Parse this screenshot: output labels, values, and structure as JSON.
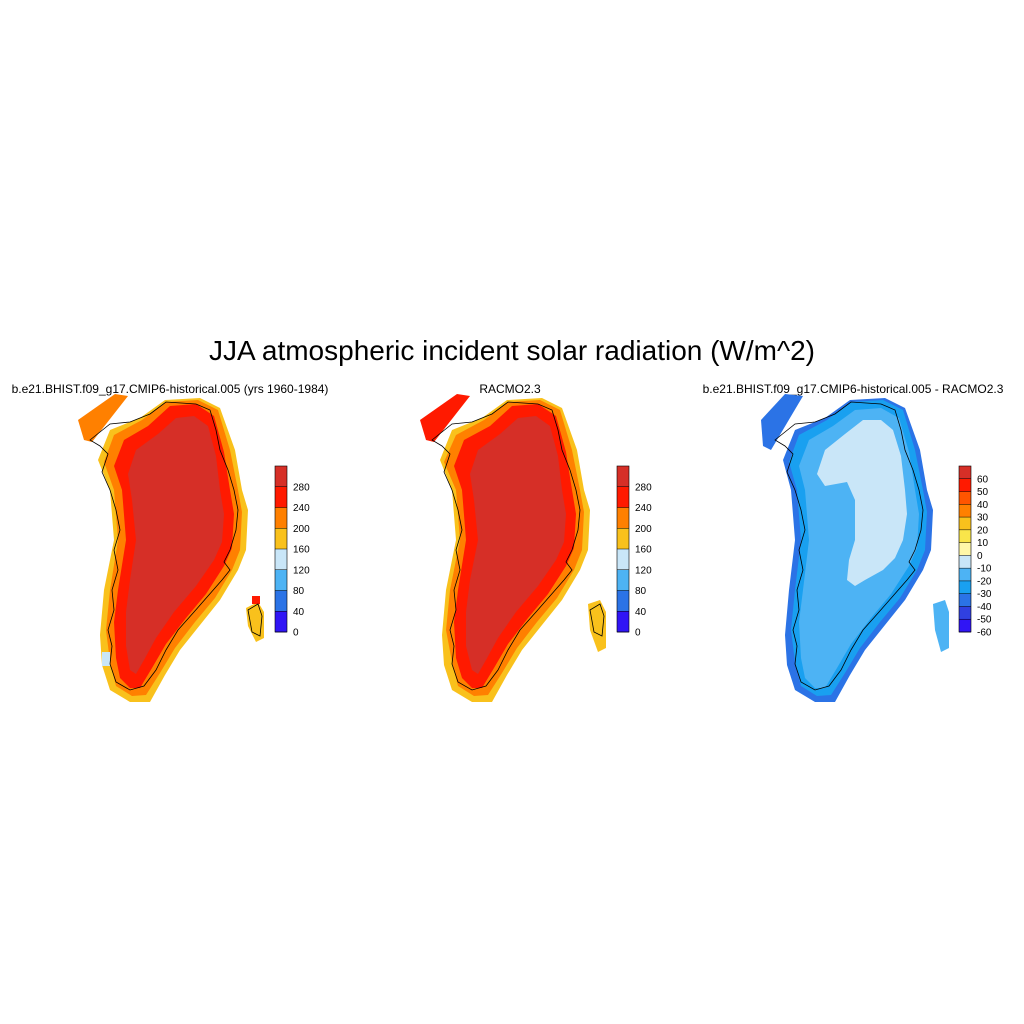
{
  "figure": {
    "title": "JJA atmospheric incident solar radiation (W/m^2)"
  },
  "panels": [
    {
      "id": "model",
      "title": "b.e21.BHIST.f09_g17.CMIP6-historical.005 (yrs 1960-1984)",
      "colorbar": {
        "labels": [
          "280",
          "240",
          "200",
          "160",
          "120",
          "80",
          "40",
          "0"
        ],
        "colors": [
          "#d62f27",
          "#ff1a00",
          "#ff8000",
          "#f9c11c",
          "#c9e6f8",
          "#4db3f4",
          "#2b73e6",
          "#3015f5"
        ]
      },
      "fields": {
        "interior": "#d62f27",
        "ring": "#ff1a00",
        "edge": "#ff8000",
        "fringe": "#f9c11c"
      }
    },
    {
      "id": "obs",
      "title": "RACMO2.3",
      "colorbar": {
        "labels": [
          "280",
          "240",
          "200",
          "160",
          "120",
          "80",
          "40",
          "0"
        ],
        "colors": [
          "#d62f27",
          "#ff1a00",
          "#ff8000",
          "#f9c11c",
          "#c9e6f8",
          "#4db3f4",
          "#2b73e6",
          "#3015f5"
        ]
      },
      "fields": {
        "interior": "#d62f27",
        "ring": "#ff1a00",
        "edge": "#ff8000",
        "fringe": "#f9c11c"
      }
    },
    {
      "id": "diff",
      "title": "b.e21.BHIST.f09_g17.CMIP6-historical.005 - RACMO2.3",
      "colorbar": {
        "labels": [
          "60",
          "50",
          "40",
          "30",
          "20",
          "10",
          "0",
          "-10",
          "-20",
          "-30",
          "-40",
          "-50",
          "-60"
        ],
        "colors": [
          "#d62f27",
          "#ff1a00",
          "#ff5500",
          "#ff8000",
          "#f9c11c",
          "#f9e54a",
          "#fff7a8",
          "#c9e6f8",
          "#4db3f4",
          "#19a0f0",
          "#2b73e6",
          "#3040e0",
          "#3015f5"
        ]
      },
      "fields": {
        "interior": "#c9e6f8",
        "ring": "#4db3f4",
        "edge": "#19a0f0",
        "fringe": "#2b73e6"
      }
    }
  ]
}
